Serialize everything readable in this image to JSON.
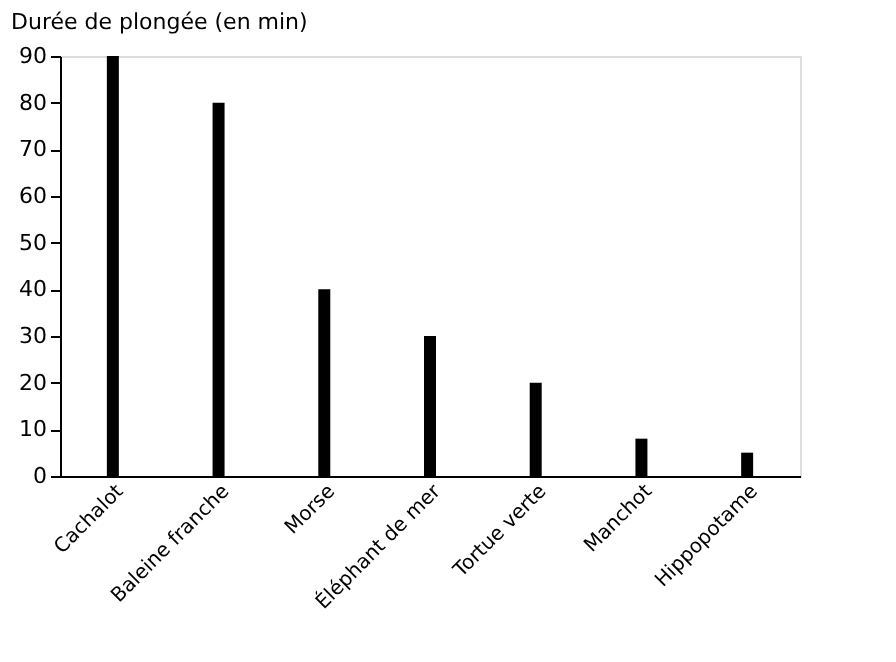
{
  "chart_data": {
    "type": "bar",
    "ylabel": "Durée de plongée (en min)",
    "categories": [
      "Cachalot",
      "Baleine franche",
      "Morse",
      "Éléphant de mer",
      "Tortue verte",
      "Manchot",
      "Hippopotame"
    ],
    "values": [
      90,
      80,
      40,
      30,
      20,
      8,
      5
    ],
    "color": "#000000",
    "ylim": [
      0,
      90
    ],
    "yticks": [
      0,
      10,
      20,
      30,
      40,
      50,
      60,
      70,
      80,
      90
    ],
    "grid": false
  }
}
